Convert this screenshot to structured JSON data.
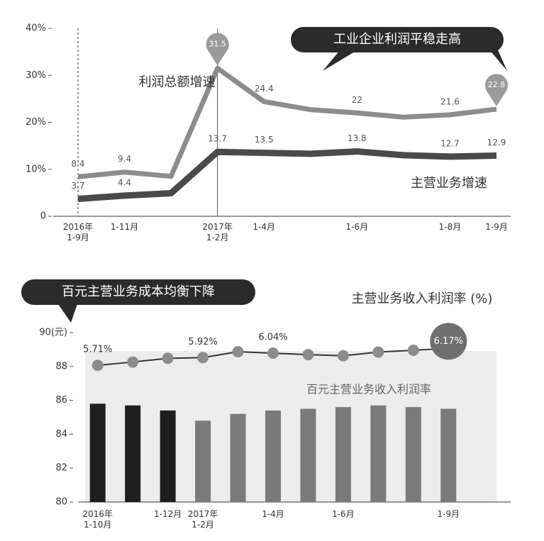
{
  "chart_data": [
    {
      "type": "line",
      "title": "工业企业利润平稳走高",
      "categories": [
        "2016年\n1-9月",
        "1-11月",
        null,
        "2017年\n1-2月",
        "1-4月",
        null,
        "1-6月",
        null,
        "1-8月",
        "1-9月"
      ],
      "series": [
        {
          "name": "利润总额增速",
          "color": "#8c8c8c",
          "values": [
            8.4,
            9.4,
            8.5,
            31.5,
            24.4,
            22.7,
            22.0,
            21.1,
            21.6,
            22.8
          ]
        },
        {
          "name": "主营业务增速",
          "color": "#4a4a4a",
          "values": [
            3.7,
            4.4,
            4.9,
            13.7,
            13.5,
            13.3,
            13.8,
            13.0,
            12.7,
            12.9
          ]
        }
      ],
      "ylim": [
        0,
        40
      ],
      "yticks": [
        0,
        {
          "value": 10,
          "label": "10%"
        },
        {
          "value": 20,
          "label": "20%"
        },
        {
          "value": 30,
          "label": "30%"
        },
        {
          "value": 40,
          "label": "40%"
        }
      ]
    },
    {
      "type": "combo",
      "title": "百元主营业务成本均衡下降",
      "subtitle": "主营业务收入利润率 (%)",
      "annotation": "百元主营业务收入利润率",
      "categories": [
        "2016年\n1-10月",
        null,
        "1-12月",
        "2017年\n1-2月",
        null,
        "1-4月",
        null,
        "1-6月",
        null,
        null,
        "1-9月"
      ],
      "bars": {
        "values": [
          85.8,
          85.7,
          85.4,
          84.8,
          85.2,
          85.4,
          85.5,
          85.6,
          85.7,
          85.6,
          85.5
        ],
        "colors": [
          "#1e1e1e",
          "#1e1e1e",
          "#1e1e1e",
          "#7a7a7a",
          "#7a7a7a",
          "#7a7a7a",
          "#7a7a7a",
          "#7a7a7a",
          "#7a7a7a",
          "#7a7a7a",
          "#7a7a7a"
        ]
      },
      "line": {
        "axis": "y2",
        "color": "#333333",
        "marker_color": "#8c8c8c",
        "values": [
          5.71,
          5.8,
          5.9,
          5.92,
          6.08,
          6.04,
          6.0,
          5.97,
          6.07,
          6.12,
          6.17
        ],
        "value_labels": [
          "5.71%",
          null,
          null,
          "5.92%",
          null,
          "6.04%",
          null,
          null,
          null,
          null,
          "6.17%"
        ]
      },
      "ylim": [
        80,
        90
      ],
      "yticks": [
        80,
        82,
        84,
        86,
        88,
        {
          "value": 90,
          "label": "90(元)"
        }
      ],
      "y2lim": [
        2,
        6.6
      ]
    }
  ]
}
